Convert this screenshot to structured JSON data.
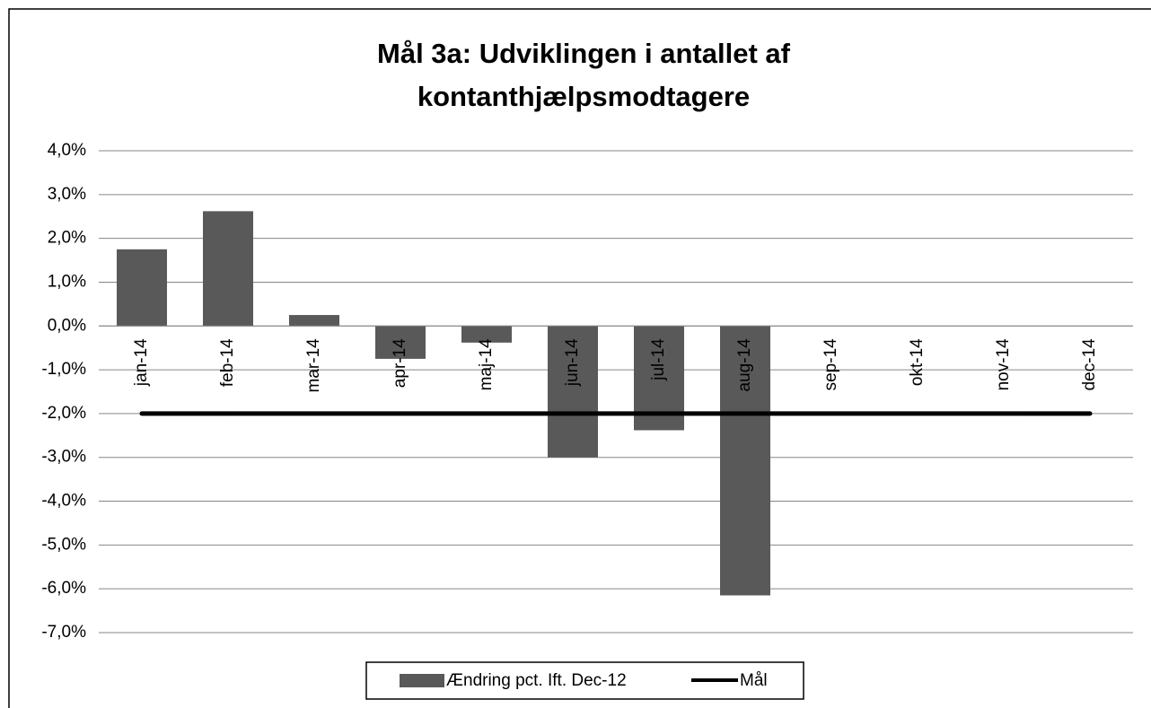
{
  "chart_data": {
    "type": "bar",
    "title": [
      "Mål 3a: Udviklingen i antallet af",
      "kontanthjælpsmodtagere"
    ],
    "categories": [
      "jan-14",
      "feb-14",
      "mar-14",
      "apr-14",
      "maj-14",
      "jun-14",
      "jul-14",
      "aug-14",
      "sep-14",
      "okt-14",
      "nov-14",
      "dec-14"
    ],
    "series": [
      {
        "name": "Ændring pct. Ift. Dec-12",
        "color": "#595959",
        "type": "bar",
        "values": [
          1.75,
          2.62,
          0.25,
          -0.75,
          -0.38,
          -3.0,
          -2.38,
          -6.15,
          null,
          null,
          null,
          null
        ]
      },
      {
        "name": "Mål",
        "color": "#000000",
        "type": "line",
        "values": [
          -2,
          -2,
          -2,
          -2,
          -2,
          -2,
          -2,
          -2,
          -2,
          -2,
          -2,
          -2
        ]
      }
    ],
    "ylim": [
      -7,
      4
    ],
    "yticks": [
      {
        "value": 4,
        "label": "4,0%"
      },
      {
        "value": 3,
        "label": "3,0%"
      },
      {
        "value": 2,
        "label": "2,0%"
      },
      {
        "value": 1,
        "label": "1,0%"
      },
      {
        "value": 0,
        "label": "0,0%"
      },
      {
        "value": -1,
        "label": "-1,0%"
      },
      {
        "value": -2,
        "label": "-2,0%"
      },
      {
        "value": -3,
        "label": "-3,0%"
      },
      {
        "value": -4,
        "label": "-4,0%"
      },
      {
        "value": -5,
        "label": "-5,0%"
      },
      {
        "value": -6,
        "label": "-6,0%"
      },
      {
        "value": -7,
        "label": "-7,0%"
      }
    ],
    "grid": true,
    "legend": "bottom"
  }
}
